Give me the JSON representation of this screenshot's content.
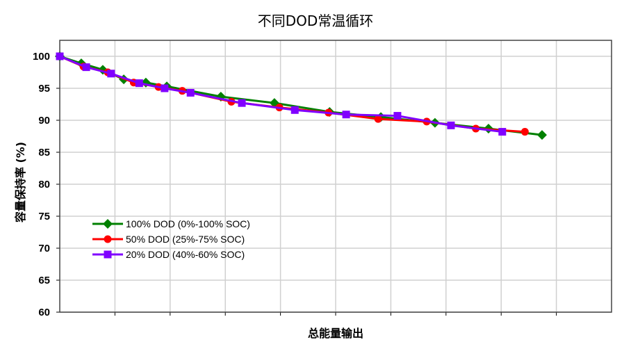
{
  "chart_data": {
    "type": "line",
    "title": "不同DOD常温循环",
    "xlabel": "总能量输出",
    "ylabel": "容量保持率 (%)",
    "xlim": [
      0,
      10
    ],
    "ylim": [
      60,
      102.5
    ],
    "yticks": [
      60,
      65,
      70,
      75,
      80,
      85,
      90,
      95,
      100
    ],
    "grid": true,
    "legend_position": "lower-left",
    "series": [
      {
        "name": "100% DOD (0%-100% SOC)",
        "color": "#008000",
        "marker": "diamond",
        "x": [
          0,
          0.39,
          0.78,
          1.16,
          1.56,
          1.94,
          2.92,
          3.89,
          4.89,
          5.82,
          6.8,
          7.77,
          8.74
        ],
        "y": [
          100,
          98.9,
          97.9,
          96.4,
          95.9,
          95.3,
          93.7,
          92.7,
          91.3,
          90.5,
          89.6,
          88.7,
          87.7
        ]
      },
      {
        "name": "50% DOD (25%-75% SOC)",
        "color": "#ff0000",
        "marker": "circle",
        "x": [
          0,
          0.43,
          0.87,
          1.34,
          1.79,
          2.22,
          3.11,
          3.98,
          4.87,
          5.77,
          6.65,
          7.54,
          8.43
        ],
        "y": [
          100,
          98.4,
          97.5,
          95.9,
          95.2,
          94.6,
          92.9,
          92.0,
          91.2,
          90.2,
          89.8,
          88.7,
          88.2
        ]
      },
      {
        "name": "20% DOD (40%-60% SOC)",
        "color": "#8000ff",
        "marker": "square",
        "x": [
          0,
          0.48,
          0.93,
          1.44,
          1.9,
          2.37,
          3.3,
          4.26,
          5.19,
          6.12,
          7.09,
          8.02
        ],
        "y": [
          100,
          98.3,
          97.3,
          95.8,
          95.0,
          94.3,
          92.7,
          91.6,
          90.9,
          90.7,
          89.2,
          88.2
        ]
      }
    ]
  }
}
